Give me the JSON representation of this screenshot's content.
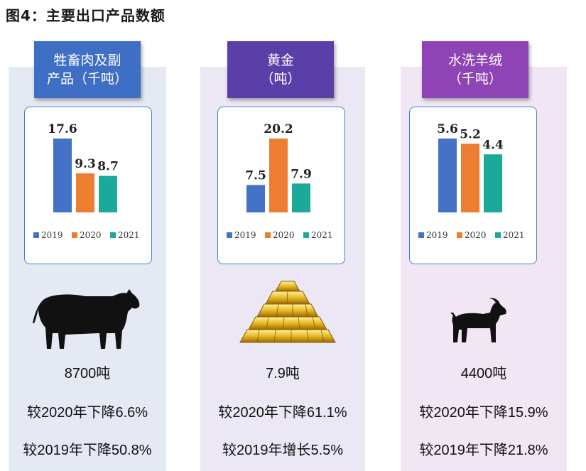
{
  "figure_title": "图4：主要出口产品数额",
  "panels": [
    {
      "header_line1": "牲畜肉及副",
      "header_line2": "产品（千吨）",
      "amount": "8700吨",
      "cmp_2020": "较2020年下降6.6%",
      "cmp_2019": "较2019年下降50.8%",
      "animal_icon": "cow-icon"
    },
    {
      "header_line1": "黄金",
      "header_line2": "（吨）",
      "amount": "7.9吨",
      "cmp_2020": "较2020年下降61.1%",
      "cmp_2019": "较2019年增长5.5%",
      "animal_icon": "gold-bars-icon"
    },
    {
      "header_line1": "水洗羊绒",
      "header_line2": "（千吨）",
      "amount": "4400吨",
      "cmp_2020": "较2020年下降15.9%",
      "cmp_2019": "较2019年下降21.8%",
      "animal_icon": "goat-icon"
    }
  ],
  "colors": {
    "series_2019": "#4472c4",
    "series_2020": "#ed7d31",
    "series_2021": "#1aa99a",
    "header_1": "#3f6fc4",
    "header_2": "#5a3fa8",
    "header_3": "#8e44b5",
    "panel_bg_1": "#e4e9f4",
    "panel_bg_2": "#ebe7f4",
    "panel_bg_3": "#f0e6f4"
  },
  "chart_data": [
    {
      "type": "bar",
      "title": "牲畜肉及副产品（千吨）",
      "categories": [
        "2019",
        "2020",
        "2021"
      ],
      "values": [
        17.6,
        9.3,
        8.7
      ],
      "value_labels": [
        "17.6",
        "9.3",
        "8.7"
      ],
      "legend": [
        "2019",
        "2020",
        "2021"
      ],
      "legend_placement": "bottom",
      "grid": false
    },
    {
      "type": "bar",
      "title": "黄金（吨）",
      "categories": [
        "2019",
        "2020",
        "2021"
      ],
      "values": [
        7.5,
        20.2,
        7.9
      ],
      "value_labels": [
        "7.5",
        "20.2",
        "7.9"
      ],
      "legend": [
        "2019",
        "2020",
        "2021"
      ],
      "legend_placement": "bottom",
      "grid": false
    },
    {
      "type": "bar",
      "title": "水洗羊绒（千吨）",
      "categories": [
        "2019",
        "2020",
        "2021"
      ],
      "values": [
        5.6,
        5.2,
        4.4
      ],
      "value_labels": [
        "5.6",
        "5.2",
        "4.4"
      ],
      "legend": [
        "2019",
        "2020",
        "2021"
      ],
      "legend_placement": "bottom",
      "grid": false
    }
  ]
}
